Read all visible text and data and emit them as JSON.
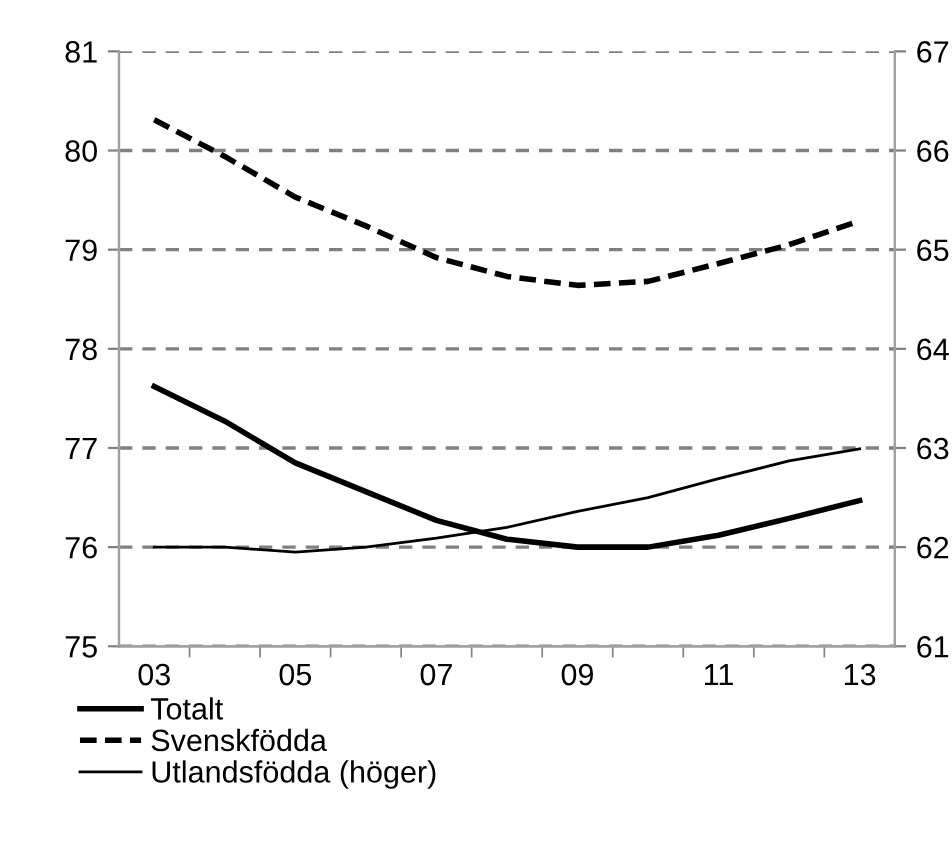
{
  "chart_data": {
    "type": "line",
    "categories": [
      "03",
      null,
      "05",
      null,
      "07",
      null,
      "09",
      null,
      "11",
      null,
      "13"
    ],
    "series": [
      {
        "name": "Totalt",
        "color": "#000000",
        "line_style": "solid",
        "values": [
          77.62,
          77.27,
          76.85,
          76.56,
          76.27,
          76.08,
          76.0,
          76.0,
          76.12,
          76.29,
          76.47
        ]
      },
      {
        "name": "Svenskfödda",
        "color": "#000000",
        "line_style": "dashed",
        "values": [
          80.31,
          79.94,
          79.53,
          79.24,
          78.92,
          78.73,
          78.64,
          78.68,
          78.86,
          79.05,
          79.29
        ]
      },
      {
        "name": "Utlandsfödda (höger)",
        "color": "#000000",
        "line_style": "solid",
        "axis": "y2",
        "values": [
          62.0,
          62.0,
          61.95,
          62.0,
          62.09,
          62.2,
          62.36,
          62.5,
          62.69,
          62.87,
          62.99
        ]
      }
    ],
    "ylim": [
      75,
      81
    ],
    "yticks": [
      75,
      76,
      77,
      78,
      79,
      80,
      81
    ],
    "y2lim": [
      61,
      67
    ],
    "y2ticks": [
      61,
      62,
      63,
      64,
      65,
      66,
      67
    ],
    "grid": "y",
    "legend": "bottom left",
    "marker": "none"
  }
}
